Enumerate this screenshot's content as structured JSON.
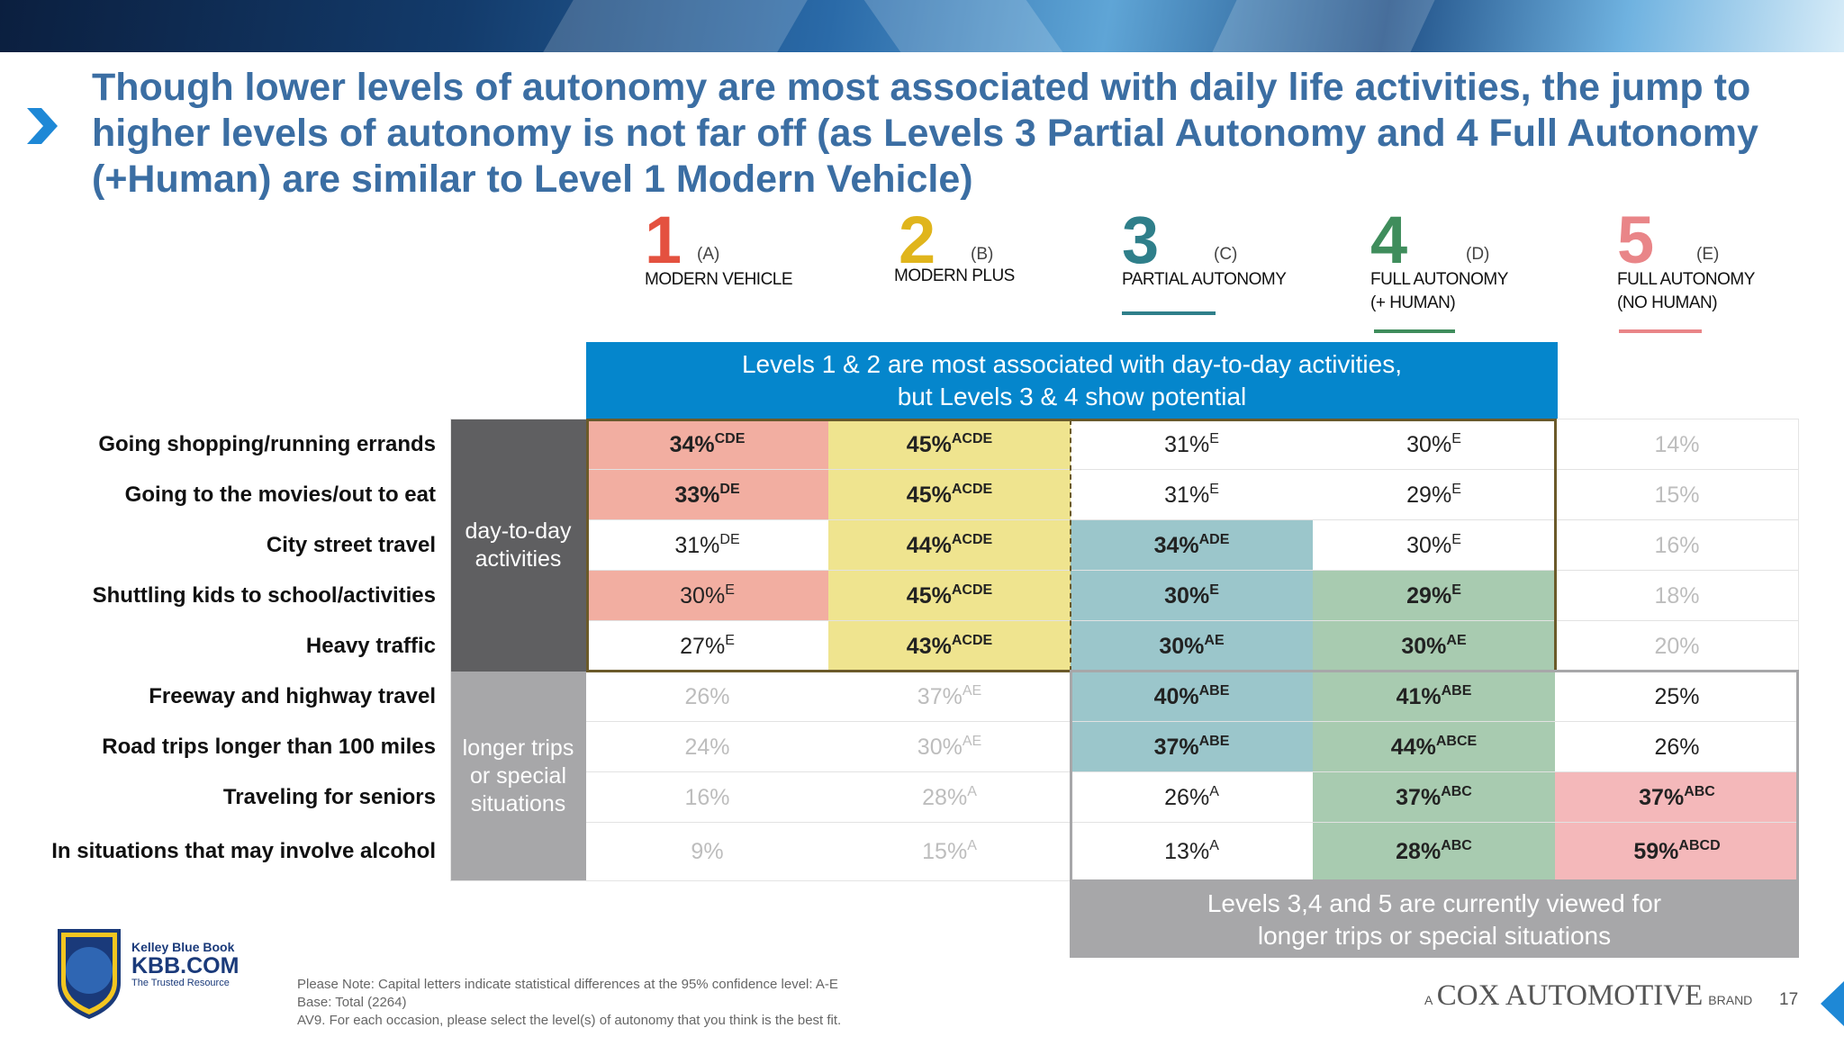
{
  "title": "Though lower levels of autonomy are most associated with daily life activities, the jump to higher levels of autonomy is not far off (as Levels 3 Partial Autonomy and 4 Full Autonomy (+Human) are similar to Level 1 Modern Vehicle)",
  "levels": [
    {
      "num": "1",
      "letter": "(A)",
      "name": "MODERN VEHICLE",
      "color": "#e4513f"
    },
    {
      "num": "2",
      "letter": "(B)",
      "name": "MODERN PLUS",
      "color": "#e0b51c"
    },
    {
      "num": "3",
      "letter": "(C)",
      "name": "PARTIAL AUTONOMY",
      "color": "#2f7f8a"
    },
    {
      "num": "4",
      "letter": "(D)",
      "name": "FULL AUTONOMY\n(+ HUMAN)",
      "color": "#3f8d5c"
    },
    {
      "num": "5",
      "letter": "(E)",
      "name": "FULL AUTONOMY\n(NO HUMAN)",
      "color": "#e98588"
    }
  ],
  "banner_top": "Levels 1 & 2 are most associated with day-to-day activities,\nbut Levels 3 & 4 show potential",
  "banner_bottom": "Levels 3,4 and 5 are currently viewed for\nlonger trips or special situations",
  "groups": [
    {
      "label": "day-to-day activities",
      "color": "#5f5f61"
    },
    {
      "label": "longer trips or special situations",
      "color": "#a7a7a9"
    }
  ],
  "rows": [
    {
      "label": "Going shopping/running errands",
      "cells": [
        {
          "v": "34%",
          "s": "CDE",
          "style": "red-b"
        },
        {
          "v": "45%",
          "s": "ACDE",
          "style": "yellow-b"
        },
        {
          "v": "31%",
          "s": "E",
          "style": "plain"
        },
        {
          "v": "30%",
          "s": "E",
          "style": "plain"
        },
        {
          "v": "14%",
          "s": "",
          "style": "light"
        }
      ]
    },
    {
      "label": "Going to the movies/out to eat",
      "cells": [
        {
          "v": "33%",
          "s": "DE",
          "style": "red-b"
        },
        {
          "v": "45%",
          "s": "ACDE",
          "style": "yellow-b"
        },
        {
          "v": "31%",
          "s": "E",
          "style": "plain"
        },
        {
          "v": "29%",
          "s": "E",
          "style": "plain"
        },
        {
          "v": "15%",
          "s": "",
          "style": "light"
        }
      ]
    },
    {
      "label": "City street travel",
      "cells": [
        {
          "v": "31%",
          "s": "DE",
          "style": "plain"
        },
        {
          "v": "44%",
          "s": "ACDE",
          "style": "yellow-b"
        },
        {
          "v": "34%",
          "s": "ADE",
          "style": "teal-b"
        },
        {
          "v": "30%",
          "s": "E",
          "style": "plain"
        },
        {
          "v": "16%",
          "s": "",
          "style": "light"
        }
      ]
    },
    {
      "label": "Shuttling kids to school/activities",
      "cells": [
        {
          "v": "30%",
          "s": "E",
          "style": "red"
        },
        {
          "v": "45%",
          "s": "ACDE",
          "style": "yellow-b"
        },
        {
          "v": "30%",
          "s": "E",
          "style": "teal-b"
        },
        {
          "v": "29%",
          "s": "E",
          "style": "green-b"
        },
        {
          "v": "18%",
          "s": "",
          "style": "light"
        }
      ]
    },
    {
      "label": "Heavy traffic",
      "cells": [
        {
          "v": "27%",
          "s": "E",
          "style": "plain"
        },
        {
          "v": "43%",
          "s": "ACDE",
          "style": "yellow-b"
        },
        {
          "v": "30%",
          "s": "AE",
          "style": "teal-b"
        },
        {
          "v": "30%",
          "s": "AE",
          "style": "green-b"
        },
        {
          "v": "20%",
          "s": "",
          "style": "light"
        }
      ]
    },
    {
      "label": "Freeway and highway travel",
      "cells": [
        {
          "v": "26%",
          "s": "",
          "style": "light"
        },
        {
          "v": "37%",
          "s": "AE",
          "style": "light"
        },
        {
          "v": "40%",
          "s": "ABE",
          "style": "teal-b"
        },
        {
          "v": "41%",
          "s": "ABE",
          "style": "green-b"
        },
        {
          "v": "25%",
          "s": "",
          "style": "plain"
        }
      ]
    },
    {
      "label": "Road trips longer than 100 miles",
      "cells": [
        {
          "v": "24%",
          "s": "",
          "style": "light"
        },
        {
          "v": "30%",
          "s": "AE",
          "style": "light"
        },
        {
          "v": "37%",
          "s": "ABE",
          "style": "teal-b"
        },
        {
          "v": "44%",
          "s": "ABCE",
          "style": "green-b"
        },
        {
          "v": "26%",
          "s": "",
          "style": "plain"
        }
      ]
    },
    {
      "label": "Traveling for seniors",
      "cells": [
        {
          "v": "16%",
          "s": "",
          "style": "light"
        },
        {
          "v": "28%",
          "s": "A",
          "style": "light"
        },
        {
          "v": "26%",
          "s": "A",
          "style": "plain"
        },
        {
          "v": "37%",
          "s": "ABC",
          "style": "green-b"
        },
        {
          "v": "37%",
          "s": "ABC",
          "style": "pink-b"
        }
      ]
    },
    {
      "label": "In situations that may involve alcohol",
      "cells": [
        {
          "v": "9%",
          "s": "",
          "style": "light"
        },
        {
          "v": "15%",
          "s": "A",
          "style": "light"
        },
        {
          "v": "13%",
          "s": "A",
          "style": "plain"
        },
        {
          "v": "28%",
          "s": "ABC",
          "style": "green-b"
        },
        {
          "v": "59%",
          "s": "ABCD",
          "style": "pink-b"
        }
      ]
    }
  ],
  "cell_colors": {
    "red": "#f2aea1",
    "yellow": "#efe48f",
    "teal": "#9bc6cb",
    "green": "#a8cbb0",
    "pink": "#f4b8ba",
    "light_text": "#bdbdbd",
    "plain_text": "#222222"
  },
  "kbb": {
    "line1": "Kelley Blue Book",
    "line2": "KBB.COM",
    "line3": "The Trusted Resource"
  },
  "notes": [
    "Please Note: Capital letters indicate statistical differences at the 95% confidence level: A-E",
    "Base: Total (2264)",
    "AV9. For each occasion, please select the level(s) of autonomy that you think is the best fit."
  ],
  "cox": {
    "prefix": "A",
    "name": "COX AUTOMOTIVE",
    "suffix": "BRAND"
  },
  "page_number": "17"
}
